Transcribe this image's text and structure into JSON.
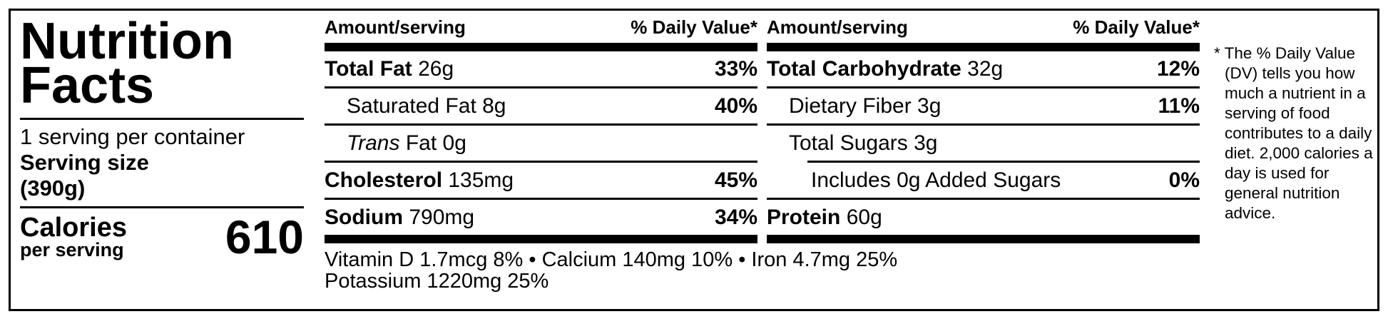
{
  "colors": {
    "ink": "#000000",
    "paper": "#ffffff"
  },
  "title": {
    "line1": "Nutrition",
    "line2": "Facts"
  },
  "serving": {
    "per_container": "1 serving per container",
    "size_label": "Serving size",
    "size_value": "(390g)"
  },
  "calories": {
    "label": "Calories",
    "sublabel": "per serving",
    "value": "610"
  },
  "columns": [
    {
      "header_left": "Amount/serving",
      "header_right": "% Daily Value*",
      "rows": [
        {
          "label": "Total Fat",
          "amount": "26g",
          "dv": "33%",
          "bold": true,
          "indent": 0,
          "divider": "none"
        },
        {
          "label": "Saturated Fat",
          "amount": "8g",
          "dv": "40%",
          "bold": false,
          "indent": 1,
          "divider": "full"
        },
        {
          "label_italic": "Trans",
          "label": "Fat",
          "amount": "0g",
          "dv": "",
          "bold": false,
          "indent": 1,
          "divider": "full"
        },
        {
          "label": "Cholesterol",
          "amount": "135mg",
          "dv": "45%",
          "bold": true,
          "indent": 0,
          "divider": "full"
        },
        {
          "label": "Sodium",
          "amount": "790mg",
          "dv": "34%",
          "bold": true,
          "indent": 0,
          "divider": "full"
        }
      ]
    },
    {
      "header_left": "Amount/serving",
      "header_right": "% Daily Value*",
      "rows": [
        {
          "label": "Total Carbohydrate",
          "amount": "32g",
          "dv": "12%",
          "bold": true,
          "indent": 0,
          "divider": "none"
        },
        {
          "label": "Dietary Fiber",
          "amount": "3g",
          "dv": "11%",
          "bold": false,
          "indent": 1,
          "divider": "full"
        },
        {
          "label": "Total Sugars",
          "amount": "3g",
          "dv": "",
          "bold": false,
          "indent": 1,
          "divider": "full"
        },
        {
          "label": "Includes 0g Added Sugars",
          "amount": "",
          "dv": "0%",
          "bold": false,
          "indent": 2,
          "divider": "indent"
        },
        {
          "label": "Protein",
          "amount": "60g",
          "dv": "",
          "bold": true,
          "indent": 0,
          "divider": "full"
        }
      ]
    }
  ],
  "micronutrients": {
    "line1": "Vitamin D 1.7mcg 8% • Calcium 140mg 10% • Iron 4.7mg 25%",
    "line2": "Potassium 1220mg 25%"
  },
  "footnote": "* The % Daily Value (DV) tells you how much a nutrient in a serving of food contributes to a daily diet. 2,000 calories a day is used for general nutrition advice."
}
